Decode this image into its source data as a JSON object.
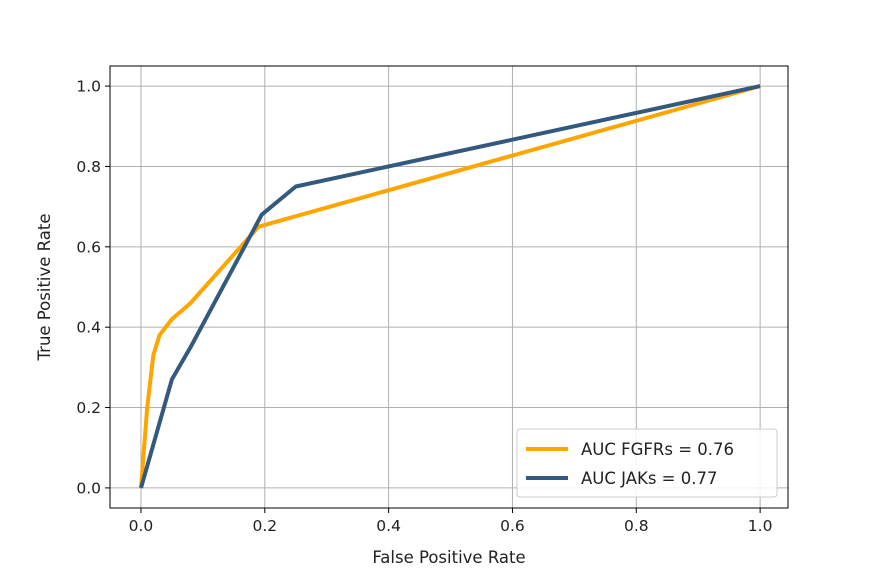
{
  "chart_data": {
    "type": "line",
    "title": "",
    "xlabel": "False Positive Rate",
    "ylabel": "True Positive Rate",
    "xlim": [
      -0.05,
      1.045
    ],
    "ylim": [
      -0.05,
      1.05
    ],
    "xticks": [
      0.0,
      0.2,
      0.4,
      0.6,
      0.8,
      1.0
    ],
    "xtick_labels": [
      "0.0",
      "0.2",
      "0.4",
      "0.6",
      "0.8",
      "1.0"
    ],
    "yticks": [
      0.0,
      0.2,
      0.4,
      0.6,
      0.8,
      1.0
    ],
    "ytick_labels": [
      "0.0",
      "0.2",
      "0.4",
      "0.6",
      "0.8",
      "1.0"
    ],
    "grid": true,
    "legend_position": "lower-right",
    "series": [
      {
        "name": "AUC FGFRs = 0.76",
        "color": "#FFA500",
        "points": [
          [
            0.0,
            0.0
          ],
          [
            0.01,
            0.2
          ],
          [
            0.02,
            0.33
          ],
          [
            0.03,
            0.38
          ],
          [
            0.05,
            0.42
          ],
          [
            0.08,
            0.46
          ],
          [
            0.19,
            0.65
          ],
          [
            1.0,
            1.0
          ]
        ]
      },
      {
        "name": "AUC JAKs = 0.77",
        "color": "#34597E",
        "points": [
          [
            0.0,
            0.0
          ],
          [
            0.05,
            0.27
          ],
          [
            0.08,
            0.35
          ],
          [
            0.195,
            0.68
          ],
          [
            0.25,
            0.75
          ],
          [
            1.0,
            1.0
          ]
        ]
      }
    ]
  }
}
